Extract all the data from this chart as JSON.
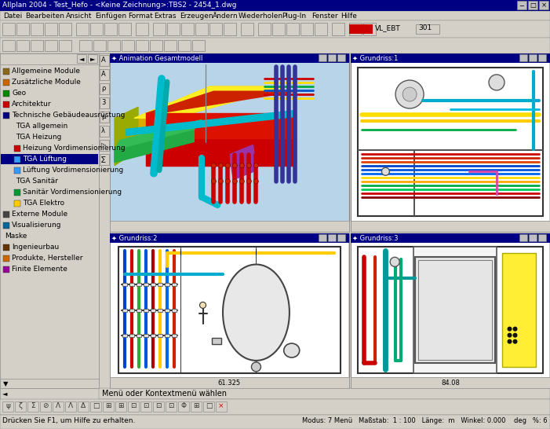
{
  "title_bar": "Allplan 2004 - Test_Hefo - <Keine Zeichnung>:TBS2 - 2454_1.dwg",
  "menu_items": [
    "Datei",
    "Bearbeiten",
    "Ansicht",
    "Einfügen",
    "Format",
    "Extras",
    "Erzeugen",
    "Ändern",
    "Wiederholen",
    "Plug-In",
    "Fenster",
    "Hilfe"
  ],
  "left_panel_items": [
    "Allgemeine Module",
    "Zusätzliche Module",
    "Geo",
    "Architektur",
    "Technische Gebäudeausrüstung",
    "TGA allgemein",
    "TGA Heizung",
    "Heizung Vordimensionierung",
    "TGA Lüftung",
    "Lüftung Vordimensionierung",
    "TGA Sanitär",
    "Sanitär Vordimensionierung",
    "TGA Elektro",
    "Externe Module",
    "Visualisierung",
    "Maske",
    "Ingenieurbau",
    "Produkte, Hersteller",
    "Finite Elemente"
  ],
  "panel_titles": [
    "Animation Gesamtmodell",
    "Grundriss:1",
    "Grundriss:2",
    "Grundriss:3"
  ],
  "status_bar": "Menü oder Kontextmenü wählen",
  "status_bar2": "Drücken Sie F1, um Hilfe zu erhalten.",
  "status_right": "Modus: 7 Menü   Maßstab:  1 : 100   Länge:  m   Winkel: 0.000    deg   %: 6",
  "colors": {
    "titlebar_bg": "#000082",
    "menubar_bg": "#d4d0c8",
    "toolbar_bg": "#d4d0c8",
    "left_panel_bg": "#d4d0c8",
    "cad_window_bg": "#f8f8f8",
    "panel_header_bg": "#000082",
    "panel_header_fg": "#ffffff",
    "status_bg": "#d4d0c8",
    "highlight_blue": "#000082",
    "separator": "#808080",
    "border_dark": "#404040",
    "border_light": "#ffffff"
  }
}
